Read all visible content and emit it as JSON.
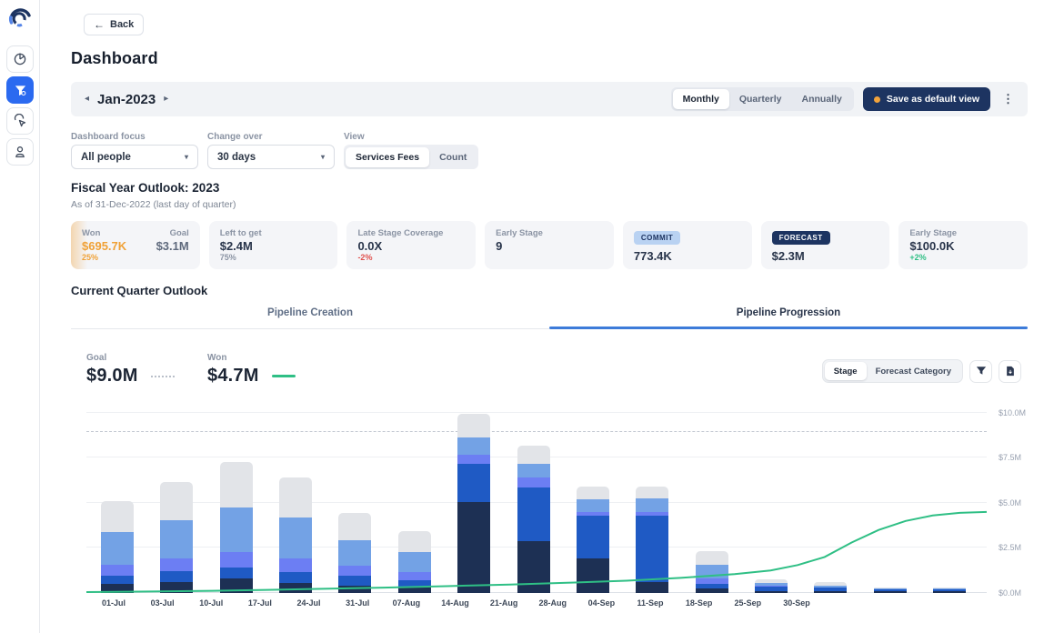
{
  "colors": {
    "accent_blue": "#2b6af0",
    "navy": "#1d3461",
    "orange": "#f2a33c",
    "green": "#2fbf85",
    "red": "#e0524f",
    "tab_underline": "#3d7bd9"
  },
  "sidebar": {
    "icons": [
      "pie-chart-icon",
      "funnel-icon",
      "click-icon",
      "person-icon"
    ],
    "active_icon": "funnel-icon"
  },
  "header": {
    "back_label": "Back",
    "title": "Dashboard"
  },
  "period_bar": {
    "period": "Jan-2023",
    "view_options": [
      "Monthly",
      "Quarterly",
      "Annually"
    ],
    "selected_view": "Monthly",
    "save_button": "Save as default view"
  },
  "filters": {
    "dashboard_focus": {
      "label": "Dashboard focus",
      "value": "All people"
    },
    "change_over": {
      "label": "Change over",
      "value": "30 days"
    },
    "view": {
      "label": "View",
      "options": [
        "Services Fees",
        "Count"
      ],
      "selected": "Services Fees"
    }
  },
  "fiscal_outlook": {
    "title": "Fiscal Year Outlook: 2023",
    "subtitle": "As of 31-Dec-2022 (last day of quarter)",
    "cards": [
      {
        "highlight": true,
        "primary": {
          "label": "Won",
          "value": "$695.7K",
          "value_color": "orange",
          "delta": "25%",
          "delta_color": "orange"
        },
        "secondary": {
          "label": "Goal",
          "value": "$3.1M"
        }
      },
      {
        "label": "Left to get",
        "value": "$2.4M",
        "delta": "75%",
        "delta_color": "grey"
      },
      {
        "label": "Late Stage Coverage",
        "value": "0.0X",
        "delta": "-2%",
        "delta_color": "red"
      },
      {
        "label": "Early Stage",
        "value": "9"
      },
      {
        "badge": "COMMIT",
        "badge_style": "light",
        "value": "773.4K"
      },
      {
        "badge": "FORECAST",
        "badge_style": "dark",
        "value": "$2.3M"
      },
      {
        "label": "Early Stage",
        "value": "$100.0K",
        "delta": "+2%",
        "delta_color": "green"
      }
    ]
  },
  "current_quarter": {
    "title": "Current Quarter Outlook",
    "tabs": [
      {
        "label": "Pipeline Creation",
        "active": false
      },
      {
        "label": "Pipeline Progression",
        "active": true
      }
    ],
    "goal": {
      "label": "Goal",
      "value": "$9.0M"
    },
    "won": {
      "label": "Won",
      "value": "$4.7M"
    },
    "controls": {
      "toggle_options": [
        "Stage",
        "Forecast Category"
      ],
      "selected": "Stage",
      "icons": [
        "filter-icon",
        "download-icon"
      ]
    }
  },
  "chart_data": {
    "type": "stacked-bar+line",
    "categories": [
      "01-Jul",
      "03-Jul",
      "10-Jul",
      "17-Jul",
      "24-Jul",
      "31-Jul",
      "07-Aug",
      "14-Aug",
      "21-Aug",
      "28-Aug",
      "04-Sep",
      "11-Sep",
      "18-Sep",
      "25-Sep",
      "30-Sep"
    ],
    "series": [
      {
        "name": "stage-dark-navy",
        "color": "#1d3054",
        "values": [
          0.5,
          0.6,
          0.8,
          0.55,
          0.4,
          0.35,
          5.05,
          2.88,
          1.94,
          0.63,
          0.25,
          0.12,
          0.1,
          0.08,
          0.08
        ]
      },
      {
        "name": "stage-blue",
        "color": "#1f5ac4",
        "values": [
          0.45,
          0.6,
          0.6,
          0.6,
          0.55,
          0.35,
          2.12,
          2.98,
          2.35,
          3.65,
          0.27,
          0.25,
          0.2,
          0.12,
          0.12
        ]
      },
      {
        "name": "stage-periwinkle",
        "color": "#6c7ef3",
        "values": [
          0.6,
          0.7,
          0.85,
          0.75,
          0.55,
          0.45,
          0.5,
          0.56,
          0.2,
          0.2,
          0.29,
          0.05,
          0.0,
          0.0,
          0.0
        ]
      },
      {
        "name": "stage-light-blue",
        "color": "#73a2e5",
        "values": [
          1.85,
          2.15,
          2.5,
          2.3,
          1.45,
          1.1,
          0.96,
          0.76,
          0.73,
          0.78,
          0.76,
          0.14,
          0.12,
          0.04,
          0.04
        ]
      },
      {
        "name": "stage-grey",
        "color": "#e2e4e8",
        "values": [
          1.7,
          2.1,
          2.5,
          2.2,
          1.5,
          1.2,
          1.31,
          1.01,
          0.71,
          0.66,
          0.76,
          0.2,
          0.18,
          0.06,
          0.06
        ]
      }
    ],
    "goal_line_value": 9.0,
    "won_line": {
      "color": "#2fbf85",
      "points": [
        [
          0,
          0.05
        ],
        [
          0.07,
          0.08
        ],
        [
          0.14,
          0.12
        ],
        [
          0.2,
          0.17
        ],
        [
          0.27,
          0.24
        ],
        [
          0.33,
          0.3
        ],
        [
          0.4,
          0.38
        ],
        [
          0.47,
          0.47
        ],
        [
          0.53,
          0.56
        ],
        [
          0.6,
          0.68
        ],
        [
          0.66,
          0.84
        ],
        [
          0.72,
          1.05
        ],
        [
          0.76,
          1.25
        ],
        [
          0.79,
          1.55
        ],
        [
          0.82,
          2.0
        ],
        [
          0.85,
          2.8
        ],
        [
          0.88,
          3.5
        ],
        [
          0.91,
          4.0
        ],
        [
          0.94,
          4.3
        ],
        [
          0.97,
          4.45
        ],
        [
          1,
          4.5
        ]
      ]
    },
    "y_ticks": [
      "$0.0M",
      "$2.5M",
      "$5.0M",
      "$7.5M",
      "$10.0M"
    ],
    "y_tick_values": [
      0,
      2.5,
      5,
      7.5,
      10
    ],
    "ylim": [
      0,
      10.45
    ],
    "legend_position": "none",
    "grid": true
  }
}
